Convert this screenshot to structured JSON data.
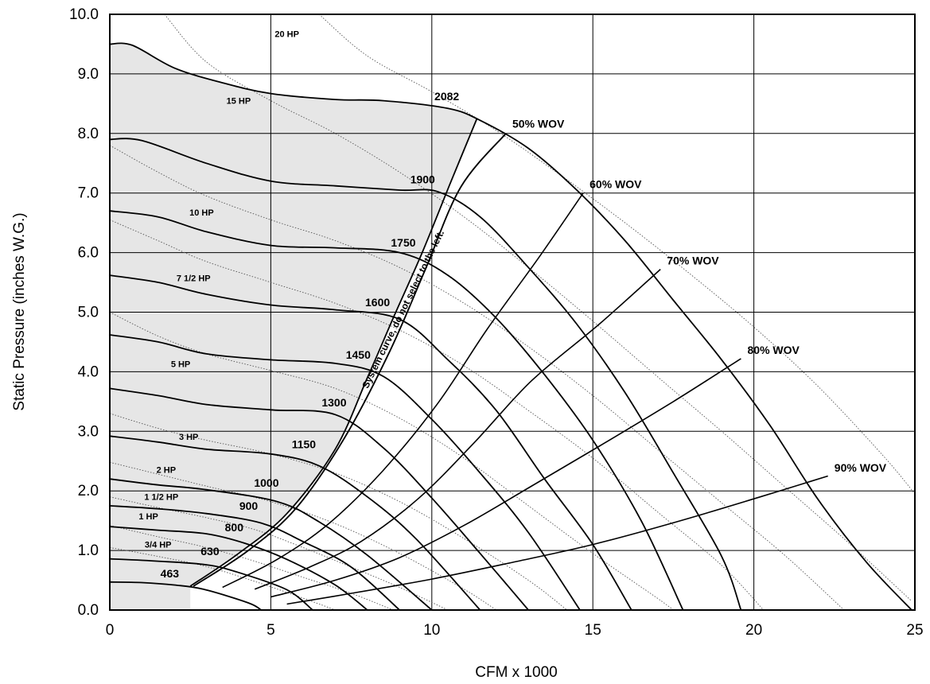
{
  "chart_data": {
    "type": "line",
    "xlabel": "CFM x 1000",
    "ylabel": "Static Pressure (inches W.G.)",
    "xlim": [
      0,
      25
    ],
    "ylim": [
      0,
      10
    ],
    "x_ticks": [
      "0",
      "5",
      "10",
      "15",
      "20",
      "25"
    ],
    "y_ticks": [
      "0.0",
      "1.0",
      "2.0",
      "3.0",
      "4.0",
      "5.0",
      "6.0",
      "7.0",
      "8.0",
      "9.0",
      "10.0"
    ],
    "grid": true,
    "rpm_curves": [
      {
        "name": "463",
        "points": [
          [
            0,
            0.47
          ],
          [
            1.0,
            0.46
          ],
          [
            2.0,
            0.42
          ],
          [
            2.9,
            0.35
          ],
          [
            4.3,
            0.12
          ],
          [
            4.7,
            0
          ]
        ]
      },
      {
        "name": "630",
        "points": [
          [
            0,
            0.86
          ],
          [
            1.5,
            0.82
          ],
          [
            3.0,
            0.76
          ],
          [
            4.0,
            0.63
          ],
          [
            5.5,
            0.34
          ],
          [
            6.3,
            0
          ]
        ]
      },
      {
        "name": "800",
        "points": [
          [
            0,
            1.4
          ],
          [
            1.5,
            1.34
          ],
          [
            3.0,
            1.28
          ],
          [
            4.2,
            1.12
          ],
          [
            5.5,
            0.85
          ],
          [
            7.0,
            0.42
          ],
          [
            8.0,
            0
          ]
        ]
      },
      {
        "name": "900",
        "points": [
          [
            0,
            1.75
          ],
          [
            1.5,
            1.7
          ],
          [
            3.0,
            1.62
          ],
          [
            4.7,
            1.46
          ],
          [
            6.0,
            1.15
          ],
          [
            7.5,
            0.72
          ],
          [
            9.0,
            0
          ]
        ]
      },
      {
        "name": "1000",
        "points": [
          [
            0,
            2.2
          ],
          [
            1.5,
            2.1
          ],
          [
            3.0,
            2.02
          ],
          [
            5.2,
            1.82
          ],
          [
            6.5,
            1.48
          ],
          [
            8.0,
            0.92
          ],
          [
            10.0,
            0
          ]
        ]
      },
      {
        "name": "1150",
        "points": [
          [
            0,
            2.92
          ],
          [
            1.5,
            2.82
          ],
          [
            3.0,
            2.7
          ],
          [
            5.0,
            2.62
          ],
          [
            6.5,
            2.42
          ],
          [
            8.0,
            1.9
          ],
          [
            9.5,
            1.2
          ],
          [
            11.5,
            0
          ]
        ]
      },
      {
        "name": "1300",
        "points": [
          [
            0,
            3.72
          ],
          [
            1.5,
            3.6
          ],
          [
            3.0,
            3.45
          ],
          [
            5.0,
            3.36
          ],
          [
            7.0,
            3.28
          ],
          [
            8.5,
            2.72
          ],
          [
            10.0,
            1.88
          ],
          [
            11.5,
            0.95
          ],
          [
            13.0,
            0
          ]
        ]
      },
      {
        "name": "1450",
        "points": [
          [
            0,
            4.62
          ],
          [
            1.5,
            4.5
          ],
          [
            3.0,
            4.3
          ],
          [
            5.0,
            4.2
          ],
          [
            7.0,
            4.14
          ],
          [
            8.5,
            3.92
          ],
          [
            10.0,
            3.2
          ],
          [
            11.5,
            2.3
          ],
          [
            13.0,
            1.3
          ],
          [
            14.6,
            0
          ]
        ]
      },
      {
        "name": "1600",
        "points": [
          [
            0,
            5.62
          ],
          [
            1.5,
            5.5
          ],
          [
            3.0,
            5.3
          ],
          [
            5.0,
            5.12
          ],
          [
            7.0,
            5.04
          ],
          [
            9.0,
            4.88
          ],
          [
            10.5,
            4.2
          ],
          [
            12.0,
            3.35
          ],
          [
            13.5,
            2.2
          ],
          [
            15.0,
            1.1
          ],
          [
            16.2,
            0
          ]
        ]
      },
      {
        "name": "1750",
        "points": [
          [
            0,
            6.7
          ],
          [
            1.5,
            6.6
          ],
          [
            3.0,
            6.35
          ],
          [
            5.0,
            6.12
          ],
          [
            7.0,
            6.08
          ],
          [
            9.0,
            6.0
          ],
          [
            10.5,
            5.62
          ],
          [
            12.0,
            4.9
          ],
          [
            13.5,
            3.95
          ],
          [
            15.0,
            2.85
          ],
          [
            16.5,
            1.5
          ],
          [
            17.8,
            0
          ]
        ]
      },
      {
        "name": "1900",
        "points": [
          [
            0,
            7.9
          ],
          [
            1.0,
            7.88
          ],
          [
            3.0,
            7.5
          ],
          [
            5.0,
            7.2
          ],
          [
            7.0,
            7.12
          ],
          [
            9.0,
            7.05
          ],
          [
            10.2,
            7.02
          ],
          [
            11.5,
            6.6
          ],
          [
            13.0,
            5.75
          ],
          [
            14.5,
            4.8
          ],
          [
            16.0,
            3.65
          ],
          [
            17.5,
            2.3
          ],
          [
            19.0,
            0.9
          ],
          [
            19.6,
            0
          ]
        ]
      },
      {
        "name": "2082",
        "points": [
          [
            0,
            9.5
          ],
          [
            0.7,
            9.48
          ],
          [
            2.0,
            9.1
          ],
          [
            3.5,
            8.85
          ],
          [
            5.0,
            8.67
          ],
          [
            7.0,
            8.57
          ],
          [
            8.5,
            8.55
          ],
          [
            10.5,
            8.42
          ],
          [
            11.5,
            8.22
          ],
          [
            13.0,
            7.75
          ],
          [
            14.5,
            7.05
          ],
          [
            16.0,
            6.2
          ],
          [
            17.5,
            5.2
          ],
          [
            19.0,
            4.2
          ],
          [
            20.5,
            3.1
          ],
          [
            22.0,
            1.85
          ],
          [
            23.5,
            0.8
          ],
          [
            24.9,
            0
          ]
        ]
      }
    ],
    "system_curve": {
      "name": "System curve, do not select to the left.",
      "points": [
        [
          2.5,
          0.4
        ],
        [
          4.0,
          0.95
        ],
        [
          5.5,
          1.62
        ],
        [
          7.0,
          2.7
        ],
        [
          8.0,
          3.9
        ],
        [
          8.8,
          4.9
        ],
        [
          9.7,
          6.0
        ],
        [
          10.6,
          7.2
        ],
        [
          11.4,
          8.25
        ]
      ]
    },
    "wov_lines": [
      {
        "name": "50% WOV",
        "points": [
          [
            2.6,
            0.4
          ],
          [
            4.3,
            1.0
          ],
          [
            5.8,
            1.72
          ],
          [
            7.3,
            2.9
          ],
          [
            8.7,
            4.35
          ],
          [
            9.8,
            5.72
          ],
          [
            10.9,
            7.1
          ],
          [
            12.3,
            8.0
          ]
        ]
      },
      {
        "name": "60% WOV",
        "points": [
          [
            3.5,
            0.38
          ],
          [
            5.2,
            0.85
          ],
          [
            6.8,
            1.45
          ],
          [
            8.5,
            2.35
          ],
          [
            10.2,
            3.48
          ],
          [
            11.7,
            4.7
          ],
          [
            13.3,
            5.9
          ],
          [
            14.7,
            7.0
          ]
        ]
      },
      {
        "name": "70% WOV",
        "points": [
          [
            4.5,
            0.35
          ],
          [
            6.2,
            0.72
          ],
          [
            7.8,
            1.15
          ],
          [
            9.6,
            1.88
          ],
          [
            11.3,
            2.8
          ],
          [
            13.1,
            3.85
          ],
          [
            15.2,
            4.8
          ],
          [
            17.1,
            5.72
          ]
        ]
      },
      {
        "name": "80% WOV",
        "points": [
          [
            5.0,
            0.22
          ],
          [
            7.0,
            0.5
          ],
          [
            9.0,
            0.88
          ],
          [
            11.0,
            1.42
          ],
          [
            13.0,
            2.05
          ],
          [
            15.2,
            2.75
          ],
          [
            17.5,
            3.5
          ],
          [
            19.6,
            4.22
          ]
        ]
      },
      {
        "name": "90% WOV",
        "points": [
          [
            5.5,
            0.1
          ],
          [
            7.5,
            0.28
          ],
          [
            10.0,
            0.52
          ],
          [
            12.5,
            0.8
          ],
          [
            15.0,
            1.1
          ],
          [
            17.6,
            1.48
          ],
          [
            20.2,
            1.9
          ],
          [
            22.3,
            2.25
          ]
        ]
      }
    ],
    "hp_curves": [
      {
        "name": "3/4 HP",
        "points": [
          [
            0,
            1.05
          ],
          [
            1.5,
            0.9
          ],
          [
            3.0,
            0.73
          ],
          [
            4.5,
            0.48
          ],
          [
            6.0,
            0.2
          ],
          [
            7.0,
            0
          ]
        ]
      },
      {
        "name": "1 HP",
        "points": [
          [
            0,
            1.42
          ],
          [
            1.5,
            1.23
          ],
          [
            3.0,
            1.05
          ],
          [
            4.5,
            0.82
          ],
          [
            6.0,
            0.55
          ],
          [
            7.5,
            0.28
          ],
          [
            8.8,
            0
          ]
        ]
      },
      {
        "name": "1 1/2 HP",
        "points": [
          [
            0,
            1.9
          ],
          [
            1.5,
            1.72
          ],
          [
            3.0,
            1.55
          ],
          [
            4.5,
            1.35
          ],
          [
            6.0,
            1.05
          ],
          [
            7.5,
            0.72
          ],
          [
            9.0,
            0.38
          ],
          [
            10.5,
            0
          ]
        ]
      },
      {
        "name": "2 HP",
        "points": [
          [
            0,
            2.48
          ],
          [
            1.5,
            2.28
          ],
          [
            3.0,
            2.08
          ],
          [
            5.0,
            1.82
          ],
          [
            7.0,
            1.45
          ],
          [
            9.0,
            0.95
          ],
          [
            11.0,
            0.35
          ],
          [
            12.0,
            0
          ]
        ]
      },
      {
        "name": "3 HP",
        "points": [
          [
            0,
            3.3
          ],
          [
            1.5,
            3.05
          ],
          [
            3.0,
            2.85
          ],
          [
            5.0,
            2.62
          ],
          [
            7.0,
            2.3
          ],
          [
            9.0,
            1.82
          ],
          [
            11.0,
            1.2
          ],
          [
            13.0,
            0.5
          ],
          [
            14.2,
            0
          ]
        ]
      },
      {
        "name": "5 HP",
        "points": [
          [
            0,
            5.0
          ],
          [
            1.5,
            4.6
          ],
          [
            3.0,
            4.3
          ],
          [
            5.0,
            4.02
          ],
          [
            7.0,
            3.72
          ],
          [
            9.0,
            3.22
          ],
          [
            11.0,
            2.55
          ],
          [
            13.0,
            1.75
          ],
          [
            15.0,
            0.95
          ],
          [
            17.0,
            0.2
          ],
          [
            17.5,
            0
          ]
        ]
      },
      {
        "name": "7 1/2 HP",
        "points": [
          [
            0,
            6.55
          ],
          [
            1.5,
            6.2
          ],
          [
            3.0,
            5.85
          ],
          [
            5.0,
            5.5
          ],
          [
            7.0,
            5.15
          ],
          [
            9.0,
            4.7
          ],
          [
            11.0,
            4.1
          ],
          [
            13.0,
            3.35
          ],
          [
            15.0,
            2.55
          ],
          [
            17.0,
            1.65
          ],
          [
            19.0,
            0.75
          ],
          [
            20.3,
            0
          ]
        ]
      },
      {
        "name": "10 HP",
        "points": [
          [
            0,
            7.8
          ],
          [
            1.5,
            7.35
          ],
          [
            3.0,
            6.95
          ],
          [
            5.0,
            6.55
          ],
          [
            7.0,
            6.2
          ],
          [
            9.0,
            5.75
          ],
          [
            11.0,
            5.15
          ],
          [
            13.0,
            4.42
          ],
          [
            15.0,
            3.6
          ],
          [
            17.0,
            2.7
          ],
          [
            19.0,
            1.8
          ],
          [
            21.0,
            0.9
          ],
          [
            22.8,
            0
          ]
        ]
      },
      {
        "name": "15 HP",
        "points": [
          [
            1.7,
            10.0
          ],
          [
            3.0,
            9.2
          ],
          [
            5.0,
            8.55
          ],
          [
            7.0,
            8.0
          ],
          [
            9.0,
            7.35
          ],
          [
            11.0,
            6.6
          ],
          [
            13.0,
            5.75
          ],
          [
            15.0,
            4.85
          ],
          [
            17.0,
            3.92
          ],
          [
            19.0,
            3.0
          ],
          [
            21.0,
            2.05
          ],
          [
            23.0,
            1.1
          ],
          [
            24.9,
            0.15
          ]
        ]
      },
      {
        "name": "20 HP",
        "points": [
          [
            6.5,
            10.0
          ],
          [
            8.0,
            9.3
          ],
          [
            10.0,
            8.7
          ],
          [
            12.0,
            8.05
          ],
          [
            14.0,
            7.3
          ],
          [
            16.0,
            6.5
          ],
          [
            18.0,
            5.65
          ],
          [
            20.0,
            4.75
          ],
          [
            22.0,
            3.75
          ],
          [
            24.0,
            2.6
          ],
          [
            25.0,
            1.95
          ]
        ]
      }
    ],
    "shaded_region": "area left of system curve below 2082 RPM curve"
  }
}
